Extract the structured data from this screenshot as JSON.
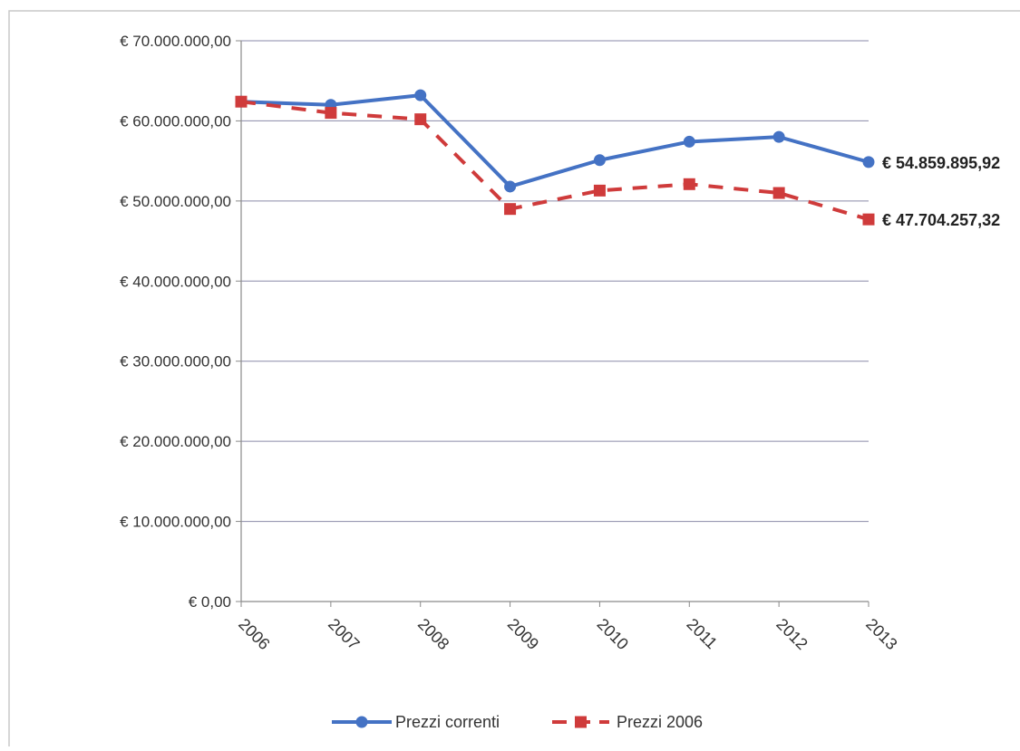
{
  "chart_data": {
    "type": "line",
    "title": "",
    "xlabel": "",
    "ylabel": "",
    "categories": [
      "2006",
      "2007",
      "2008",
      "2009",
      "2010",
      "2011",
      "2012",
      "2013"
    ],
    "ylim": [
      0,
      70000000
    ],
    "y_ticks": [
      0,
      10000000,
      20000000,
      30000000,
      40000000,
      50000000,
      60000000,
      70000000
    ],
    "y_tick_labels": [
      "€ 0,00",
      "€ 10.000.000,00",
      "€ 20.000.000,00",
      "€ 30.000.000,00",
      "€ 40.000.000,00",
      "€ 50.000.000,00",
      "€ 60.000.000,00",
      "€ 70.000.000,00"
    ],
    "grid": true,
    "legend_position": "bottom",
    "series": [
      {
        "name": "Prezzi correnti",
        "color": "#4472c4",
        "style": "solid",
        "marker": "circle",
        "values": [
          62400000,
          62000000,
          63200000,
          51800000,
          55100000,
          57400000,
          58000000,
          54859895.92
        ],
        "end_label": "€ 54.859.895,92"
      },
      {
        "name": "Prezzi 2006",
        "color": "#cf3b3b",
        "style": "dashed",
        "marker": "square",
        "values": [
          62400000,
          61000000,
          60200000,
          49000000,
          51300000,
          52100000,
          51000000,
          47704257.32
        ],
        "end_label": "€ 47.704.257,32"
      }
    ]
  }
}
